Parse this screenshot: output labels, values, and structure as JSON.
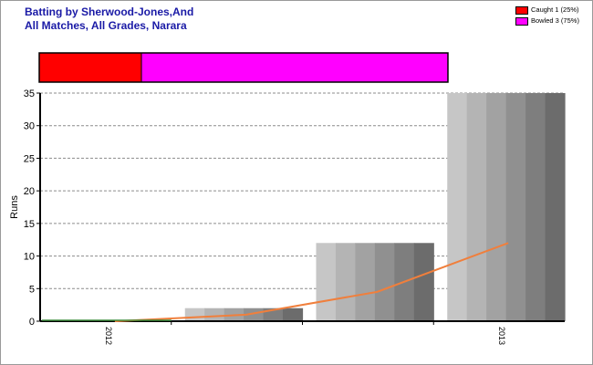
{
  "chart_data": {
    "type": "bar",
    "title_lines": [
      "Batting by Sherwood-Jones,And",
      "All Matches, All Grades, Narara"
    ],
    "ylabel": "Runs",
    "xlabel": "",
    "ylim": [
      0,
      35
    ],
    "yticks": [
      0,
      5,
      10,
      15,
      20,
      25,
      30,
      35
    ],
    "grid": true,
    "categories": [
      "2012",
      "",
      "",
      "2013"
    ],
    "x_tick_labels": [
      "2012",
      "2013"
    ],
    "values": [
      0,
      2,
      12,
      35
    ],
    "trend_line": [
      0,
      1,
      4.5,
      12
    ],
    "bar_colors": {
      "light": "#c6c6c6",
      "dark": "#6c6c6c"
    },
    "trend_color": "#f07f3c",
    "legend_position": "top-right",
    "dismissals": [
      {
        "label": "Caught 1 (25%)",
        "value": 1,
        "color": "#ff0000"
      },
      {
        "label": "Bowled 3 (75%)",
        "value": 3,
        "color": "#ff00ff"
      }
    ]
  }
}
